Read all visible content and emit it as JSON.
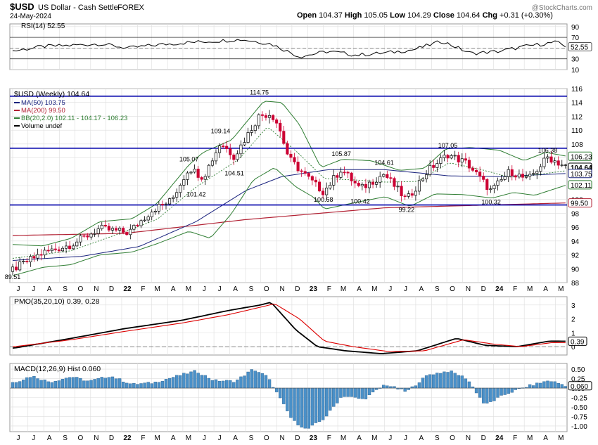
{
  "header": {
    "symbol": "$USD",
    "name": "US Dollar - Cash Settle",
    "exchange": "FOREX",
    "date": "24-May-2024",
    "ohlc": "Open 104.37  High 105.05  Low 104.29  Close 104.64  Chg +0.31 (+0.30%)",
    "ohlc_parts": [
      {
        "label": "Open",
        "value": "104.37"
      },
      {
        "label": "High",
        "value": "105.05"
      },
      {
        "label": "Low",
        "value": "104.29"
      },
      {
        "label": "Close",
        "value": "104.64"
      },
      {
        "label": "Chg",
        "value": "+0.31 (+0.30%)"
      }
    ],
    "watermark": "@StockCharts.com"
  },
  "colors": {
    "up_candle": "#000000",
    "down_candle": "#cc0033",
    "ma50": "#1a237e",
    "ma200": "#b22234",
    "bollinger": "#2e7d32",
    "bb_mid": "#2e7d32",
    "support_resistance": "#0000aa",
    "pmo": "#000000",
    "pmo_signal": "#dd0000",
    "macd_hist": "#4a90c8",
    "rsi": "#000000",
    "rsi_fill": "#5a8a5a",
    "grid": "#dddddd"
  },
  "x_axis": {
    "labels": [
      "J",
      "J",
      "A",
      "S",
      "O",
      "N",
      "D",
      "22",
      "F",
      "M",
      "A",
      "M",
      "J",
      "J",
      "A",
      "S",
      "O",
      "N",
      "D",
      "23",
      "F",
      "M",
      "A",
      "M",
      "J",
      "J",
      "A",
      "S",
      "O",
      "N",
      "D",
      "24",
      "F",
      "M",
      "A",
      "M"
    ],
    "start": "2021-06-01",
    "end": "2024-05-24"
  },
  "chart_data": [
    {
      "type": "line",
      "title": "RSI(14) 52.55",
      "ylim": [
        10,
        95
      ],
      "yticks": [
        90,
        70,
        50,
        30,
        10
      ],
      "value_label": "52.55",
      "levels": [
        70,
        30
      ],
      "series": [
        {
          "name": "RSI(14)",
          "x": [
            "2021-06-04",
            "2021-07-30",
            "2021-09-24",
            "2021-11-19",
            "2022-01-14",
            "2022-03-11",
            "2022-05-06",
            "2022-07-01",
            "2022-08-26",
            "2022-10-21",
            "2022-12-16",
            "2023-02-10",
            "2023-04-07",
            "2023-06-02",
            "2023-07-28",
            "2023-09-22",
            "2023-11-17",
            "2024-01-12",
            "2024-03-08",
            "2024-05-03",
            "2024-05-24"
          ],
          "values": [
            45,
            53,
            55,
            58,
            50,
            56,
            60,
            63,
            66,
            58,
            34,
            44,
            37,
            41,
            47,
            63,
            40,
            44,
            54,
            61,
            52.55
          ]
        }
      ]
    },
    {
      "type": "candlestick",
      "title": "$USD (Weekly) 104.64",
      "ylim": [
        88,
        116
      ],
      "yticks": [
        116,
        114,
        112,
        110,
        108,
        106,
        104,
        102,
        100,
        98,
        96,
        94,
        92,
        90,
        88
      ],
      "legend": [
        {
          "label": "MA(50) 103.75"
        },
        {
          "label": "MA(200) 99.50"
        },
        {
          "label": "BB(20,2.0) 102.11 - 104.17 - 106.23"
        },
        {
          "label": "Volume undef"
        }
      ],
      "horizontal_lines": [
        114.9,
        107.4,
        99.2
      ],
      "price_annotations": [
        {
          "text": "114.75",
          "x": "2022-09-28",
          "y": 114.75
        },
        {
          "text": "109.14",
          "x": "2022-07-14",
          "y": 109.14
        },
        {
          "text": "105.07",
          "x": "2022-05-13",
          "y": 105.07
        },
        {
          "text": "104.51",
          "x": "2022-08-10",
          "y": 104.51
        },
        {
          "text": "101.42",
          "x": "2022-05-27",
          "y": 101.42
        },
        {
          "text": "105.87",
          "x": "2023-03-08",
          "y": 105.87
        },
        {
          "text": "104.61",
          "x": "2023-05-31",
          "y": 104.61
        },
        {
          "text": "107.05",
          "x": "2023-10-03",
          "y": 107.05
        },
        {
          "text": "106.38",
          "x": "2024-04-16",
          "y": 106.38
        },
        {
          "text": "100.68",
          "x": "2023-02-01",
          "y": 100.68
        },
        {
          "text": "100.42",
          "x": "2023-04-14",
          "y": 100.42
        },
        {
          "text": "99.22",
          "x": "2023-07-14",
          "y": 99.22
        },
        {
          "text": "100.32",
          "x": "2023-12-27",
          "y": 100.32
        },
        {
          "text": "89.51",
          "x": "2021-06-01",
          "y": 89.51
        }
      ],
      "axis_tags": [
        {
          "text": "106.23",
          "y": 106.23,
          "series": "BB upper"
        },
        {
          "text": "104.64",
          "y": 104.64,
          "series": "Close"
        },
        {
          "text": "103.75",
          "y": 103.75,
          "series": "MA(50)"
        },
        {
          "text": "102.11",
          "y": 102.11,
          "series": "BB lower"
        },
        {
          "text": "99.50",
          "y": 99.5,
          "series": "MA(200)"
        }
      ],
      "close_anchors": {
        "x": [
          "2021-06-01",
          "2021-07-30",
          "2021-09-24",
          "2021-11-19",
          "2022-01-14",
          "2022-03-04",
          "2022-04-08",
          "2022-05-13",
          "2022-06-10",
          "2022-07-14",
          "2022-08-10",
          "2022-09-28",
          "2022-10-21",
          "2022-11-04",
          "2022-11-25",
          "2022-12-16",
          "2023-01-13",
          "2023-02-01",
          "2023-03-08",
          "2023-04-14",
          "2023-05-31",
          "2023-07-14",
          "2023-08-25",
          "2023-10-03",
          "2023-11-10",
          "2023-12-27",
          "2024-02-02",
          "2024-03-08",
          "2024-04-16",
          "2024-05-24"
        ],
        "values": [
          89.9,
          92.3,
          93.5,
          95.8,
          95.2,
          98.6,
          99.8,
          104.6,
          103.2,
          108.2,
          106.2,
          112.1,
          112.4,
          110.8,
          105.9,
          104.3,
          102.3,
          101.1,
          104.4,
          101.5,
          103.7,
          99.9,
          104.2,
          106.5,
          105.2,
          101.2,
          104.1,
          102.8,
          106.1,
          104.64
        ]
      },
      "ma50_anchors": {
        "x": [
          "2021-06-01",
          "2021-10-15",
          "2022-02-04",
          "2022-05-27",
          "2022-09-02",
          "2022-11-11",
          "2023-02-10",
          "2023-06-02",
          "2023-10-06",
          "2024-01-12",
          "2024-05-24"
        ],
        "values": [
          91.2,
          91.8,
          93.2,
          96.8,
          101.3,
          103.3,
          104.3,
          104.3,
          103.4,
          103.3,
          103.75
        ]
      },
      "ma200_anchors": {
        "x": [
          "2021-06-01",
          "2022-01-07",
          "2022-09-02",
          "2023-06-02",
          "2024-05-24"
        ],
        "values": [
          94.8,
          95.1,
          97.1,
          98.8,
          99.5
        ]
      },
      "bb_upper_anchors": {
        "x": [
          "2021-06-01",
          "2021-07-30",
          "2021-09-24",
          "2021-11-19",
          "2022-01-21",
          "2022-03-11",
          "2022-05-13",
          "2022-06-10",
          "2022-08-05",
          "2022-10-07",
          "2022-11-11",
          "2022-12-16",
          "2023-01-27",
          "2023-03-10",
          "2023-05-05",
          "2023-06-30",
          "2023-08-18",
          "2023-09-29",
          "2023-11-17",
          "2024-01-12",
          "2024-03-01",
          "2024-04-12",
          "2024-05-24"
        ],
        "values": [
          93.5,
          93.3,
          94.4,
          96.8,
          97.2,
          99.4,
          105.0,
          106.8,
          108.6,
          114.2,
          114.0,
          110.8,
          104.6,
          105.8,
          105.6,
          104.2,
          104.5,
          107.3,
          107.5,
          107.1,
          105.6,
          106.8,
          106.23
        ]
      },
      "bb_mid_anchors": {
        "x": [
          "2021-06-01",
          "2021-09-24",
          "2021-12-17",
          "2022-03-11",
          "2022-05-27",
          "2022-08-19",
          "2022-10-14",
          "2022-12-09",
          "2023-02-03",
          "2023-04-07",
          "2023-06-02",
          "2023-08-04",
          "2023-10-06",
          "2023-12-08",
          "2024-02-02",
          "2024-03-29",
          "2024-05-24"
        ],
        "values": [
          91.5,
          92.6,
          94.8,
          97.1,
          101.8,
          105.8,
          110.5,
          107.0,
          103.0,
          102.8,
          102.5,
          102.6,
          105.3,
          104.3,
          103.2,
          103.6,
          104.17
        ]
      },
      "bb_lower_anchors": {
        "x": [
          "2021-06-01",
          "2021-07-30",
          "2021-09-24",
          "2021-11-19",
          "2022-01-21",
          "2022-03-11",
          "2022-05-13",
          "2022-06-24",
          "2022-08-05",
          "2022-09-16",
          "2022-10-28",
          "2022-12-09",
          "2023-01-13",
          "2023-02-03",
          "2023-04-07",
          "2023-06-02",
          "2023-07-21",
          "2023-09-08",
          "2023-11-03",
          "2023-12-29",
          "2024-02-09",
          "2024-03-22",
          "2024-05-24"
        ],
        "values": [
          89.0,
          90.2,
          90.6,
          92.0,
          92.4,
          93.6,
          95.4,
          94.4,
          98.0,
          102.8,
          104.6,
          101.8,
          100.3,
          98.6,
          99.6,
          100.4,
          99.0,
          100.8,
          100.7,
          100.2,
          101.0,
          100.6,
          102.11
        ]
      }
    },
    {
      "type": "line",
      "title": "PMO(35,20,10) 0.39, 0.28",
      "ylim": [
        -0.6,
        3.6
      ],
      "yticks": [
        3,
        2,
        1,
        0
      ],
      "value_label": "0.39",
      "series": [
        {
          "name": "PMO(35,20,10)",
          "x": [
            "2021-06-04",
            "2021-09-24",
            "2022-01-07",
            "2022-04-29",
            "2022-07-29",
            "2022-09-30",
            "2022-10-21",
            "2022-12-09",
            "2023-01-20",
            "2023-03-17",
            "2023-05-26",
            "2023-08-04",
            "2023-10-20",
            "2023-12-15",
            "2024-02-16",
            "2024-04-19",
            "2024-05-24"
          ],
          "values": [
            -0.1,
            0.6,
            1.3,
            1.9,
            2.6,
            3.0,
            3.2,
            1.2,
            0.0,
            -0.3,
            -0.5,
            -0.3,
            0.6,
            0.1,
            0.0,
            0.4,
            0.39
          ]
        },
        {
          "name": "Signal",
          "x": [
            "2021-06-04",
            "2021-09-24",
            "2022-01-07",
            "2022-04-29",
            "2022-07-29",
            "2022-10-07",
            "2022-10-28",
            "2022-12-16",
            "2023-02-03",
            "2023-03-31",
            "2023-06-09",
            "2023-08-18",
            "2023-11-03",
            "2023-12-29",
            "2024-02-23",
            "2024-04-26",
            "2024-05-24"
          ],
          "values": [
            0.0,
            0.5,
            1.1,
            1.7,
            2.3,
            2.9,
            3.1,
            2.0,
            0.4,
            0.0,
            -0.35,
            -0.3,
            0.5,
            0.2,
            0.0,
            0.3,
            0.28
          ]
        }
      ]
    },
    {
      "type": "bar",
      "title": "MACD(12,26,9) Hist 0.060",
      "ylim": [
        -1.15,
        0.65
      ],
      "yticks": [
        0.5,
        0.25,
        0.0,
        -0.25,
        -0.5,
        -0.75,
        -1.0
      ],
      "value_label": "0.060",
      "series": [
        {
          "name": "Hist",
          "x": [
            "2021-06-04",
            "2021-07-09",
            "2021-08-13",
            "2021-09-24",
            "2021-10-29",
            "2021-12-10",
            "2022-01-21",
            "2022-03-04",
            "2022-04-15",
            "2022-05-27",
            "2022-07-01",
            "2022-08-12",
            "2022-09-16",
            "2022-10-14",
            "2022-11-11",
            "2022-12-02",
            "2022-12-30",
            "2023-02-03",
            "2023-03-10",
            "2023-04-21",
            "2023-06-02",
            "2023-07-14",
            "2023-08-25",
            "2023-10-06",
            "2023-11-10",
            "2023-12-15",
            "2024-01-26",
            "2024-03-08",
            "2024-04-19",
            "2024-05-24"
          ],
          "values": [
            0.15,
            0.32,
            0.16,
            0.3,
            0.18,
            0.32,
            0.1,
            0.14,
            0.3,
            0.45,
            0.2,
            0.18,
            0.5,
            0.3,
            -0.35,
            -0.85,
            -1.1,
            -0.8,
            -0.2,
            -0.3,
            0.1,
            -0.1,
            0.35,
            0.45,
            0.25,
            -0.45,
            -0.15,
            0.05,
            0.2,
            0.06
          ]
        }
      ]
    }
  ]
}
